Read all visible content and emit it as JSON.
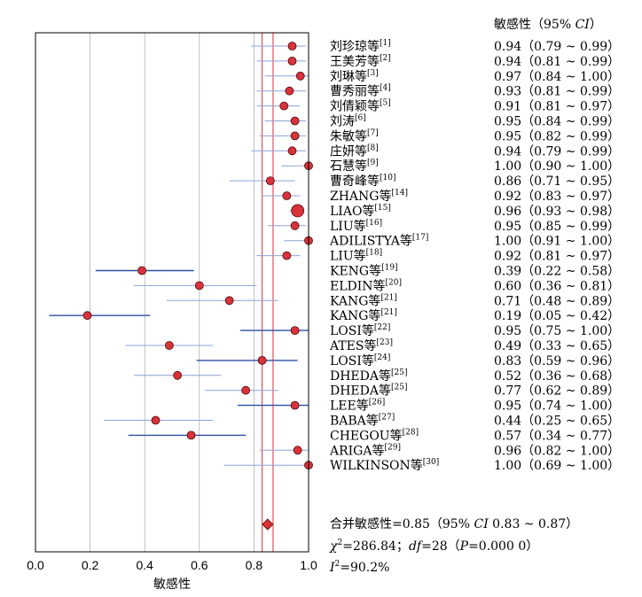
{
  "chart_data": {
    "type": "forest",
    "xlabel": "敏感性",
    "xlim": [
      0,
      1
    ],
    "xticks": [
      "0.0",
      "0.2",
      "0.4",
      "0.6",
      "0.8",
      "1.0"
    ],
    "grid": true,
    "column_header": "敏感性（95% CI）",
    "studies": [
      {
        "name": "刘珍琼等",
        "ref": "[1]",
        "value": 0.94,
        "lo": 0.79,
        "hi": 0.99,
        "text": "0.94（0.79 ~ 0.99）"
      },
      {
        "name": "王美芳等",
        "ref": "[2]",
        "value": 0.94,
        "lo": 0.81,
        "hi": 0.99,
        "text": "0.94（0.81 ~ 0.99）"
      },
      {
        "name": "刘琳等",
        "ref": "[3]",
        "value": 0.97,
        "lo": 0.84,
        "hi": 1.0,
        "text": "0.97（0.84 ~ 1.00）"
      },
      {
        "name": "曹秀丽等",
        "ref": "[4]",
        "value": 0.93,
        "lo": 0.81,
        "hi": 0.99,
        "text": "0.93（0.81 ~ 0.99）"
      },
      {
        "name": "刘倩颖等",
        "ref": "[5]",
        "value": 0.91,
        "lo": 0.81,
        "hi": 0.97,
        "text": "0.91（0.81 ~ 0.97）"
      },
      {
        "name": "刘涛",
        "ref": "[6]",
        "value": 0.95,
        "lo": 0.84,
        "hi": 0.99,
        "text": "0.95（0.84 ~ 0.99）"
      },
      {
        "name": "朱敏等",
        "ref": "[7]",
        "value": 0.95,
        "lo": 0.82,
        "hi": 0.99,
        "text": "0.95（0.82 ~ 0.99）"
      },
      {
        "name": "庄妍等",
        "ref": "[8]",
        "value": 0.94,
        "lo": 0.79,
        "hi": 0.99,
        "text": "0.94（0.79 ~ 0.99）"
      },
      {
        "name": "石慧等",
        "ref": "[9]",
        "value": 1.0,
        "lo": 0.9,
        "hi": 1.0,
        "text": "1.00（0.90 ~ 1.00）"
      },
      {
        "name": "曹奇峰等",
        "ref": "[10]",
        "value": 0.86,
        "lo": 0.71,
        "hi": 0.95,
        "text": "0.86（0.71 ~ 0.95）"
      },
      {
        "name": "ZHANG等",
        "ref": "[14]",
        "value": 0.92,
        "lo": 0.83,
        "hi": 0.97,
        "text": "0.92（0.83 ~ 0.97）"
      },
      {
        "name": "LIAO等",
        "ref": "[15]",
        "value": 0.96,
        "lo": 0.93,
        "hi": 0.98,
        "text": "0.96（0.93 ~ 0.98）"
      },
      {
        "name": "LIU等",
        "ref": "[16]",
        "value": 0.95,
        "lo": 0.85,
        "hi": 0.99,
        "text": "0.95（0.85 ~ 0.99）"
      },
      {
        "name": "ADILISTYA等",
        "ref": "[17]",
        "value": 1.0,
        "lo": 0.91,
        "hi": 1.0,
        "text": "1.00（0.91 ~ 1.00）"
      },
      {
        "name": "LIU等",
        "ref": "[18]",
        "value": 0.92,
        "lo": 0.81,
        "hi": 0.97,
        "text": "0.92（0.81 ~ 0.97）"
      },
      {
        "name": "KENG等",
        "ref": "[19]",
        "value": 0.39,
        "lo": 0.22,
        "hi": 0.58,
        "text": "0.39（0.22 ~ 0.58）"
      },
      {
        "name": "ELDIN等",
        "ref": "[20]",
        "value": 0.6,
        "lo": 0.36,
        "hi": 0.81,
        "text": "0.60（0.36 ~ 0.81）"
      },
      {
        "name": "KANG等",
        "ref": "[21]",
        "value": 0.71,
        "lo": 0.48,
        "hi": 0.89,
        "text": "0.71（0.48 ~ 0.89）"
      },
      {
        "name": "KANG等",
        "ref": "[21]",
        "value": 0.19,
        "lo": 0.05,
        "hi": 0.42,
        "text": "0.19（0.05 ~ 0.42）"
      },
      {
        "name": "LOSI等",
        "ref": "[22]",
        "value": 0.95,
        "lo": 0.75,
        "hi": 1.0,
        "text": "0.95（0.75 ~ 1.00）"
      },
      {
        "name": "ATES等",
        "ref": "[23]",
        "value": 0.49,
        "lo": 0.33,
        "hi": 0.65,
        "text": "0.49（0.33 ~ 0.65）"
      },
      {
        "name": "LOSI等",
        "ref": "[24]",
        "value": 0.83,
        "lo": 0.59,
        "hi": 0.96,
        "text": "0.83（0.59 ~ 0.96）"
      },
      {
        "name": "DHEDA等",
        "ref": "[25]",
        "value": 0.52,
        "lo": 0.36,
        "hi": 0.68,
        "text": "0.52（0.36 ~ 0.68）"
      },
      {
        "name": "DHEDA等",
        "ref": "[25]",
        "value": 0.77,
        "lo": 0.62,
        "hi": 0.89,
        "text": "0.77（0.62 ~ 0.89）"
      },
      {
        "name": "LEE等",
        "ref": "[26]",
        "value": 0.95,
        "lo": 0.74,
        "hi": 1.0,
        "text": "0.95（0.74 ~ 1.00）"
      },
      {
        "name": "BABA等",
        "ref": "[27]",
        "value": 0.44,
        "lo": 0.25,
        "hi": 0.65,
        "text": "0.44（0.25 ~ 0.65）"
      },
      {
        "name": "CHEGOU等",
        "ref": "[28]",
        "value": 0.57,
        "lo": 0.34,
        "hi": 0.77,
        "text": "0.57（0.34 ~ 0.77）"
      },
      {
        "name": "ARIGA等",
        "ref": "[29]",
        "value": 0.96,
        "lo": 0.82,
        "hi": 1.0,
        "text": "0.96（0.82 ~ 1.00）"
      },
      {
        "name": "WILKINSON等",
        "ref": "[30]",
        "value": 1.0,
        "lo": 0.69,
        "hi": 1.0,
        "text": "1.00（0.69 ~ 1.00）"
      }
    ],
    "pooled": {
      "value": 0.85,
      "lo": 0.83,
      "hi": 0.87,
      "text": "合并敏感性=0.85（95% CI 0.83 ~ 0.87）"
    },
    "stats": {
      "chi2": "χ2=286.84；df=28（P=0.000 0）",
      "i2": "I2=90.2%"
    },
    "colors": {
      "point": "#d9323a",
      "point_stroke": "#4a0a0a",
      "ci_line": "#2c4fa3",
      "ci_line_light": "#8da3d6",
      "pooled_line": "#d9323a",
      "grid": "#b0b0b0"
    }
  }
}
